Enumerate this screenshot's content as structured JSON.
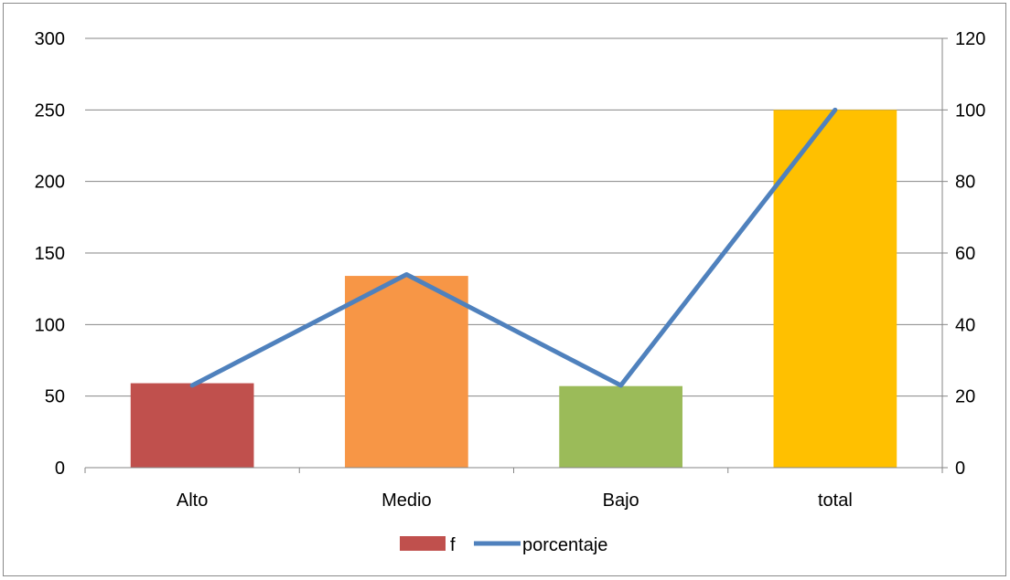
{
  "chart_data": {
    "type": "bar",
    "title": "",
    "xlabel": "",
    "ylabel": "",
    "y2label": "",
    "categories": [
      "Alto",
      "Medio",
      "Bajo",
      "total"
    ],
    "series": [
      {
        "name": "f",
        "kind": "bar",
        "axis": "left",
        "values": [
          59,
          134,
          57,
          250
        ],
        "colors": [
          "#C0504D",
          "#F79646",
          "#9BBB59",
          "#FFC000"
        ]
      },
      {
        "name": "porcentaje",
        "kind": "line",
        "axis": "right",
        "values": [
          23,
          54,
          23,
          100
        ],
        "color": "#4F81BD"
      }
    ],
    "ylim": [
      0,
      300
    ],
    "y2lim": [
      0,
      120
    ],
    "yticks": [
      "0",
      "50",
      "100",
      "150",
      "200",
      "250",
      "300"
    ],
    "y2ticks": [
      "0",
      "20",
      "40",
      "60",
      "80",
      "100",
      "120"
    ],
    "grid": true,
    "legend_position": "bottom",
    "gridline_color": "#868686"
  }
}
